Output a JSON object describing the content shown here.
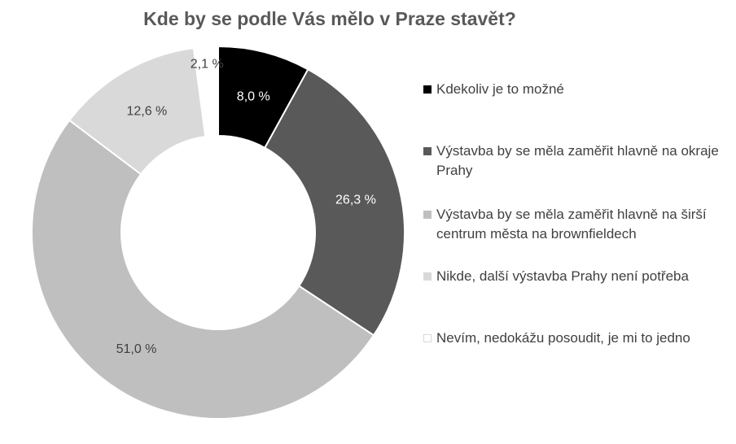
{
  "chart_data": {
    "type": "pie",
    "style": "donut",
    "title": "Kde by se podle Vás mělo v Praze stavět?",
    "legend_position": "right",
    "slices": [
      {
        "label": "Kdekoliv je to možné",
        "value": 8.0,
        "display": "8,0 %",
        "color": "#000000",
        "text_color": "#ffffff"
      },
      {
        "label": "Výstavba by se měla zaměřit hlavně na okraje Prahy",
        "value": 26.3,
        "display": "26,3 %",
        "color": "#595959",
        "text_color": "#ffffff"
      },
      {
        "label": "Výstavba by se měla zaměřit hlavně na širší centrum města na brownfieldech",
        "value": 51.0,
        "display": "51,0 %",
        "color": "#bfbfbf",
        "text_color": "#404040"
      },
      {
        "label": "Nikde, další výstavba Prahy není potřeba",
        "value": 12.6,
        "display": "12,6 %",
        "color": "#d9d9d9",
        "text_color": "#404040"
      },
      {
        "label": "Nevím, nedokážu posoudit, je mi to jedno",
        "value": 2.1,
        "display": "2,1 %",
        "color": "#ffffff",
        "text_color": "#404040"
      }
    ]
  }
}
